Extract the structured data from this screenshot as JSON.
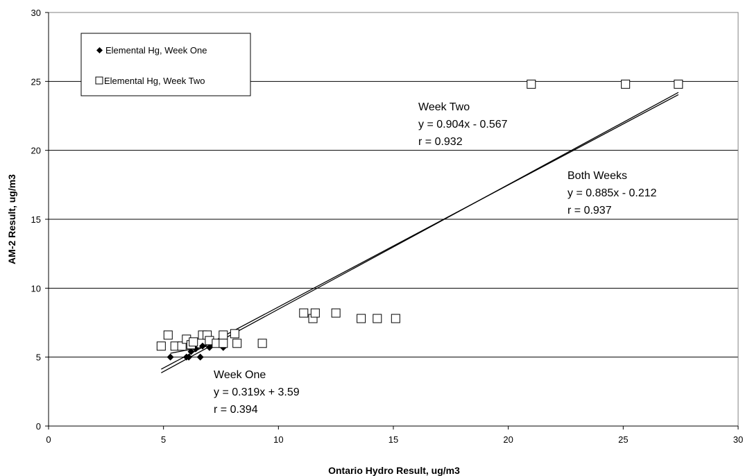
{
  "chart_data": {
    "type": "scatter",
    "title": "",
    "xlabel": "Ontario Hydro Result, ug/m3",
    "ylabel": "AM-2 Result, ug/m3",
    "xlim": [
      0,
      30
    ],
    "ylim": [
      0,
      30
    ],
    "xticks": [
      "0",
      "5",
      "10",
      "15",
      "20",
      "25",
      "30"
    ],
    "yticks": [
      "0",
      "5",
      "10",
      "15",
      "20",
      "25",
      "30"
    ],
    "grid": "horizontal",
    "legend_position": "top-left",
    "series": [
      {
        "name": "Elemental Hg, Week One",
        "marker": "filled-diamond",
        "color": "#000000",
        "points": [
          [
            5.3,
            5.0
          ],
          [
            5.8,
            5.8
          ],
          [
            6.0,
            5.0
          ],
          [
            6.1,
            5.0
          ],
          [
            6.2,
            5.4
          ],
          [
            6.4,
            5.6
          ],
          [
            6.6,
            5.0
          ],
          [
            6.7,
            5.8
          ],
          [
            7.0,
            5.7
          ],
          [
            7.6,
            5.7
          ]
        ]
      },
      {
        "name": "Elemental Hg, Week Two",
        "marker": "open-square",
        "color": "#000000",
        "points": [
          [
            4.9,
            5.8
          ],
          [
            5.2,
            6.6
          ],
          [
            5.5,
            5.8
          ],
          [
            5.8,
            5.8
          ],
          [
            6.0,
            6.3
          ],
          [
            6.2,
            5.9
          ],
          [
            6.3,
            6.1
          ],
          [
            6.7,
            6.6
          ],
          [
            6.9,
            6.6
          ],
          [
            7.0,
            6.2
          ],
          [
            7.3,
            6.0
          ],
          [
            7.6,
            6.6
          ],
          [
            7.6,
            6.0
          ],
          [
            8.1,
            6.7
          ],
          [
            8.2,
            6.0
          ],
          [
            9.3,
            6.0
          ],
          [
            11.1,
            8.2
          ],
          [
            11.5,
            7.8
          ],
          [
            11.6,
            8.2
          ],
          [
            12.5,
            8.2
          ],
          [
            13.6,
            7.8
          ],
          [
            14.3,
            7.8
          ],
          [
            15.1,
            7.8
          ],
          [
            21.0,
            24.8
          ],
          [
            25.1,
            24.8
          ],
          [
            27.4,
            24.8
          ]
        ]
      }
    ],
    "trendlines": [
      {
        "label": "Week Two",
        "slope": 0.904,
        "intercept": -0.567,
        "x_range": [
          4.9,
          27.4
        ]
      },
      {
        "label": "Both Weeks",
        "slope": 0.885,
        "intercept": -0.212,
        "x_range": [
          4.9,
          27.4
        ]
      },
      {
        "label": "Week One",
        "slope": 0.319,
        "intercept": 3.59,
        "x_range": [
          5.3,
          7.6
        ]
      }
    ],
    "annotations": {
      "week_two": {
        "title": "Week Two",
        "equation": "y = 0.904x - 0.567",
        "r": "r = 0.932"
      },
      "both_weeks": {
        "title": "Both Weeks",
        "equation": "y = 0.885x - 0.212",
        "r": "r = 0.937"
      },
      "week_one": {
        "title": "Week One",
        "equation": "y = 0.319x + 3.59",
        "r": "r = 0.394"
      }
    }
  }
}
